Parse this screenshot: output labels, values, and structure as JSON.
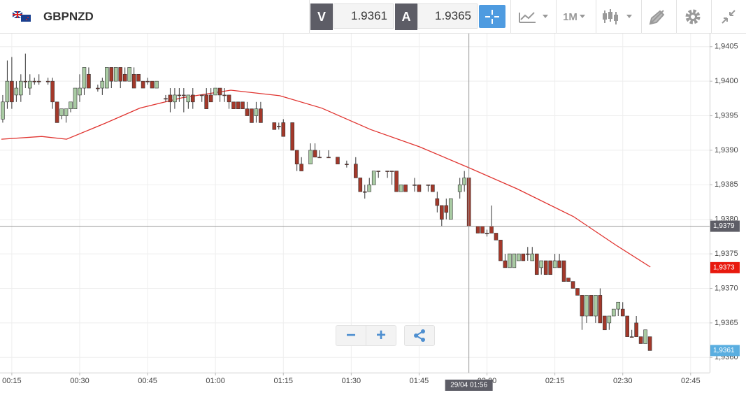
{
  "toolbar": {
    "symbol": "GBPNZD",
    "bid_label": "V",
    "bid": "1.9361",
    "ask_label": "A",
    "ask": "1.9365",
    "timeframe": "1M"
  },
  "chart_data": {
    "type": "candlestick",
    "up_color": "#a9cba3",
    "down_color": "#a3382a",
    "xlim": [
      12.7,
      169.2
    ],
    "ylim": [
      1.93578,
      1.94069
    ],
    "xticks": [
      {
        "value": 15,
        "label": "00:15"
      },
      {
        "value": 30,
        "label": "00:30"
      },
      {
        "value": 45,
        "label": "00:45"
      },
      {
        "value": 60,
        "label": "01:00"
      },
      {
        "value": 75,
        "label": "01:15"
      },
      {
        "value": 90,
        "label": "01:30"
      },
      {
        "value": 105,
        "label": "01:45"
      },
      {
        "value": 120,
        "label": "02:00"
      },
      {
        "value": 135,
        "label": "02:15"
      },
      {
        "value": 150,
        "label": "02:30"
      },
      {
        "value": 165,
        "label": "02:45"
      }
    ],
    "yticks": [
      {
        "value": 1.936,
        "label": "1,9360"
      },
      {
        "value": 1.9365,
        "label": "1,9365"
      },
      {
        "value": 1.937,
        "label": "1,9370"
      },
      {
        "value": 1.9375,
        "label": "1,9375"
      },
      {
        "value": 1.938,
        "label": "1,9380"
      },
      {
        "value": 1.9385,
        "label": "1,9385"
      },
      {
        "value": 1.939,
        "label": "1,9390"
      },
      {
        "value": 1.9395,
        "label": "1,9395"
      },
      {
        "value": 1.94,
        "label": "1,9400"
      },
      {
        "value": 1.9405,
        "label": "1,9405"
      }
    ],
    "grid": true,
    "candles": [
      [
        13,
        1.93945,
        1.9398,
        1.9394,
        1.9397
      ],
      [
        14,
        1.9397,
        1.9403,
        1.9396,
        1.94
      ],
      [
        15,
        1.94,
        1.94035,
        1.9396,
        1.9397
      ],
      [
        16,
        1.9398,
        1.94,
        1.9397,
        1.9399
      ],
      [
        17,
        1.9398,
        1.9401,
        1.9397,
        1.94
      ],
      [
        18,
        1.94,
        1.9404,
        1.9399,
        1.94
      ],
      [
        19,
        1.9399,
        1.9401,
        1.9398,
        1.94
      ],
      [
        20,
        1.94,
        1.94005,
        1.93995,
        1.94
      ],
      [
        21,
        1.94,
        1.9401,
        1.93995,
        1.94
      ],
      [
        23,
        1.94,
        1.94005,
        1.93995,
        1.94
      ],
      [
        24,
        1.94,
        1.94005,
        1.9396,
        1.9397
      ],
      [
        25,
        1.9397,
        1.9397,
        1.9394,
        1.9394
      ],
      [
        26,
        1.9395,
        1.9396,
        1.93945,
        1.9396
      ],
      [
        27,
        1.9395,
        1.9396,
        1.9394,
        1.9396
      ],
      [
        28,
        1.9396,
        1.9397,
        1.93955,
        1.9397
      ],
      [
        29,
        1.9396,
        1.9399,
        1.9396,
        1.9399
      ],
      [
        30,
        1.9398,
        1.9401,
        1.9397,
        1.9399
      ],
      [
        31,
        1.9399,
        1.9402,
        1.9398,
        1.9402
      ],
      [
        32,
        1.9401,
        1.9402,
        1.9399,
        1.9399
      ],
      [
        34,
        1.9399,
        1.93995,
        1.93985,
        1.9399
      ],
      [
        35,
        1.9399,
        1.94005,
        1.9398,
        1.94
      ],
      [
        36,
        1.9399,
        1.9402,
        1.9399,
        1.9402
      ],
      [
        37,
        1.9402,
        1.9402,
        1.9399,
        1.94
      ],
      [
        38,
        1.94,
        1.9402,
        1.94,
        1.9402
      ],
      [
        39,
        1.9402,
        1.9402,
        1.9399,
        1.94
      ],
      [
        40,
        1.9401,
        1.9402,
        1.94,
        1.94
      ],
      [
        41,
        1.94,
        1.9402,
        1.94,
        1.9402
      ],
      [
        42,
        1.9401,
        1.9402,
        1.9399,
        1.9399
      ],
      [
        43,
        1.9401,
        1.9401,
        1.94,
        1.94
      ],
      [
        44,
        1.94,
        1.94,
        1.9399,
        1.9399
      ],
      [
        45,
        1.94,
        1.94005,
        1.93995,
        1.94
      ],
      [
        46,
        1.94,
        1.94,
        1.9399,
        1.9399
      ],
      [
        47,
        1.9399,
        1.94,
        1.9399,
        1.94
      ],
      [
        49,
        1.93975,
        1.9398,
        1.9397,
        1.93975
      ],
      [
        50,
        1.9398,
        1.9399,
        1.93955,
        1.9397
      ],
      [
        51,
        1.9397,
        1.9399,
        1.9396,
        1.9398
      ],
      [
        52,
        1.9398,
        1.9399,
        1.9397,
        1.9398
      ],
      [
        53,
        1.9398,
        1.9399,
        1.93955,
        1.9398
      ],
      [
        54,
        1.9397,
        1.9398,
        1.9396,
        1.9398
      ],
      [
        55,
        1.9398,
        1.9399,
        1.9396,
        1.9397
      ],
      [
        57,
        1.9398,
        1.9398,
        1.9397,
        1.9398
      ],
      [
        58,
        1.9398,
        1.9399,
        1.9396,
        1.9396
      ],
      [
        59,
        1.9398,
        1.9399,
        1.9397,
        1.9397
      ],
      [
        60,
        1.9398,
        1.9399,
        1.9398,
        1.9399
      ],
      [
        61,
        1.9399,
        1.9399,
        1.9397,
        1.9398
      ],
      [
        62,
        1.9398,
        1.9399,
        1.9397,
        1.9398
      ],
      [
        63,
        1.9398,
        1.9398,
        1.9396,
        1.9397
      ],
      [
        64,
        1.9397,
        1.9397,
        1.9396,
        1.9396
      ],
      [
        65,
        1.9397,
        1.9397,
        1.9396,
        1.9396
      ],
      [
        66,
        1.9397,
        1.9397,
        1.9396,
        1.9396
      ],
      [
        67,
        1.9396,
        1.9397,
        1.9395,
        1.9395
      ],
      [
        68,
        1.9396,
        1.9396,
        1.9394,
        1.9394
      ],
      [
        69,
        1.9395,
        1.9397,
        1.9394,
        1.9396
      ],
      [
        70,
        1.9396,
        1.9397,
        1.9394,
        1.9394
      ],
      [
        73,
        1.9394,
        1.9394,
        1.9393,
        1.9393
      ],
      [
        74,
        1.93935,
        1.9394,
        1.9393,
        1.93935
      ],
      [
        75,
        1.9394,
        1.93945,
        1.9392,
        1.9392
      ],
      [
        77,
        1.9394,
        1.9394,
        1.939,
        1.939
      ],
      [
        78,
        1.939,
        1.939,
        1.9387,
        1.9388
      ],
      [
        79,
        1.9388,
        1.9389,
        1.9387,
        1.9387
      ],
      [
        81,
        1.9388,
        1.9391,
        1.9388,
        1.939
      ],
      [
        82,
        1.939,
        1.9391,
        1.9389,
        1.9389
      ],
      [
        83,
        1.9389,
        1.939,
        1.9389,
        1.9389
      ],
      [
        85,
        1.9389,
        1.939,
        1.9389,
        1.9389
      ],
      [
        87,
        1.9389,
        1.9389,
        1.9388,
        1.9388
      ],
      [
        89,
        1.9388,
        1.93885,
        1.93875,
        1.9388
      ],
      [
        91,
        1.9388,
        1.9389,
        1.9386,
        1.9386
      ],
      [
        92,
        1.9386,
        1.9386,
        1.9384,
        1.9384
      ],
      [
        93,
        1.9384,
        1.9385,
        1.9383,
        1.9384
      ],
      [
        94,
        1.9384,
        1.9386,
        1.9384,
        1.9385
      ],
      [
        95,
        1.9385,
        1.9387,
        1.9385,
        1.9387
      ],
      [
        96,
        1.9387,
        1.9387,
        1.9386,
        1.9387
      ],
      [
        98,
        1.9387,
        1.9387,
        1.9386,
        1.9387
      ],
      [
        99,
        1.9387,
        1.9387,
        1.9385,
        1.9387
      ],
      [
        100,
        1.9387,
        1.9387,
        1.9384,
        1.9384
      ],
      [
        101,
        1.9384,
        1.9385,
        1.9384,
        1.9385
      ],
      [
        102,
        1.9385,
        1.9385,
        1.9384,
        1.9384
      ],
      [
        104,
        1.9385,
        1.9386,
        1.9384,
        1.9385
      ],
      [
        105,
        1.9385,
        1.9385,
        1.9384,
        1.9384
      ],
      [
        107,
        1.9385,
        1.9385,
        1.9384,
        1.9385
      ],
      [
        108,
        1.9385,
        1.9385,
        1.9384,
        1.9384
      ],
      [
        109,
        1.9383,
        1.9384,
        1.9381,
        1.9382
      ],
      [
        110,
        1.9382,
        1.9382,
        1.9379,
        1.938
      ],
      [
        111,
        1.9382,
        1.9383,
        1.938,
        1.9381
      ],
      [
        112,
        1.938,
        1.9383,
        1.938,
        1.9383
      ],
      [
        114,
        1.9384,
        1.9386,
        1.9383,
        1.9385
      ],
      [
        115,
        1.9385,
        1.9387,
        1.9384,
        1.9386
      ],
      [
        116,
        1.9386,
        1.9386,
        1.9379,
        1.9379
      ],
      [
        118,
        1.9379,
        1.9379,
        1.9378,
        1.9378
      ],
      [
        119,
        1.9379,
        1.9379,
        1.9378,
        1.9378
      ],
      [
        120,
        1.9378,
        1.93785,
        1.93775,
        1.9378
      ],
      [
        121,
        1.9379,
        1.9382,
        1.9378,
        1.9378
      ],
      [
        122,
        1.9378,
        1.9378,
        1.9377,
        1.9377
      ],
      [
        123,
        1.9377,
        1.9377,
        1.9374,
        1.9374
      ],
      [
        124,
        1.9374,
        1.9375,
        1.9373,
        1.9373
      ],
      [
        125,
        1.9373,
        1.9375,
        1.9373,
        1.9375
      ],
      [
        126,
        1.9373,
        1.9375,
        1.9373,
        1.9375
      ],
      [
        127,
        1.9374,
        1.9375,
        1.9374,
        1.9375
      ],
      [
        128,
        1.9375,
        1.9375,
        1.9374,
        1.9374
      ],
      [
        129,
        1.9375,
        1.9376,
        1.9374,
        1.9375
      ],
      [
        130,
        1.9374,
        1.9376,
        1.9374,
        1.9375
      ],
      [
        131,
        1.9375,
        1.9375,
        1.9372,
        1.9372
      ],
      [
        132,
        1.9373,
        1.9374,
        1.9372,
        1.9374
      ],
      [
        133,
        1.9374,
        1.9374,
        1.9372,
        1.9372
      ],
      [
        134,
        1.9374,
        1.9374,
        1.9372,
        1.9372
      ],
      [
        135,
        1.9373,
        1.9375,
        1.9373,
        1.9374
      ],
      [
        136,
        1.9374,
        1.9375,
        1.9373,
        1.9373
      ],
      [
        137,
        1.9374,
        1.9374,
        1.9371,
        1.9371
      ],
      [
        138,
        1.93715,
        1.93715,
        1.9371,
        1.9371
      ],
      [
        139,
        1.9371,
        1.9371,
        1.937,
        1.937
      ],
      [
        140,
        1.937,
        1.937,
        1.9369,
        1.9369
      ],
      [
        141,
        1.9369,
        1.9369,
        1.9364,
        1.9366
      ],
      [
        142,
        1.9366,
        1.9369,
        1.9365,
        1.9369
      ],
      [
        143,
        1.9369,
        1.9369,
        1.9366,
        1.9366
      ],
      [
        144,
        1.9366,
        1.9369,
        1.9365,
        1.9369
      ],
      [
        145,
        1.9369,
        1.937,
        1.9365,
        1.9365
      ],
      [
        146,
        1.9366,
        1.9366,
        1.9364,
        1.9364
      ],
      [
        147,
        1.9365,
        1.9366,
        1.9364,
        1.9366
      ],
      [
        148,
        1.9366,
        1.9367,
        1.9366,
        1.9367
      ],
      [
        149,
        1.9367,
        1.9368,
        1.9366,
        1.9368
      ],
      [
        150,
        1.9367,
        1.9368,
        1.9366,
        1.9366
      ],
      [
        151,
        1.9366,
        1.9366,
        1.9363,
        1.9363
      ],
      [
        152,
        1.9363,
        1.9364,
        1.9363,
        1.9363
      ],
      [
        153,
        1.9365,
        1.9366,
        1.9363,
        1.9363
      ],
      [
        154,
        1.9363,
        1.9363,
        1.9362,
        1.9362
      ],
      [
        155,
        1.9362,
        1.9364,
        1.9362,
        1.9364
      ],
      [
        156,
        1.9363,
        1.9363,
        1.9361,
        1.9361
      ]
    ],
    "ma": {
      "color": "#e0332f",
      "x": [
        12.7,
        21.6,
        27.1,
        35.6,
        43.3,
        52.6,
        63.4,
        74.2,
        83.5,
        94.3,
        105.1,
        115.9,
        126.7,
        139.1,
        148.4,
        156.1
      ],
      "values": [
        1.93916,
        1.9392,
        1.93916,
        1.93939,
        1.93961,
        1.93976,
        1.93987,
        1.93979,
        1.93961,
        1.9393,
        1.93905,
        1.93875,
        1.93844,
        1.93804,
        1.93763,
        1.93731
      ]
    },
    "crosshair": {
      "x": 116,
      "x_label": "29/04 01:56",
      "y": {
        "value": 1.9379,
        "label": "1,9379"
      },
      "color": "#5d5d66"
    },
    "price_markers": [
      {
        "value": 1.9373,
        "label": "1,9373",
        "color": "#e8190e"
      },
      {
        "value": 1.9361,
        "label": "1,9361",
        "color": "#5aaee0"
      }
    ]
  }
}
